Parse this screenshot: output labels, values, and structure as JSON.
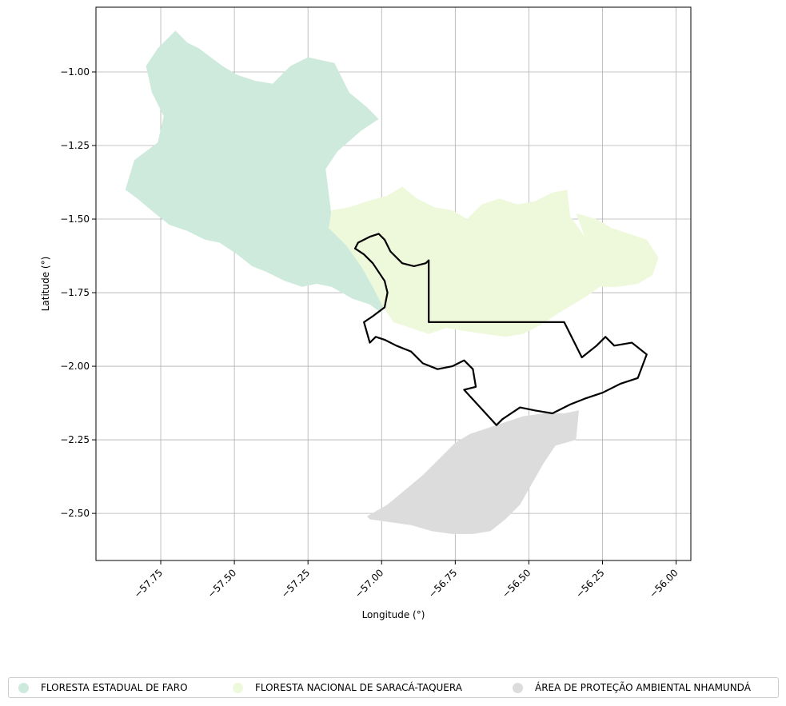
{
  "map": {
    "xlabel": "Longitude (°)",
    "ylabel": "Latitude (°)",
    "xticks": [
      -57.75,
      -57.5,
      -57.25,
      -57.0,
      -56.75,
      -56.5,
      -56.25,
      -56.0
    ],
    "xtick_labels": [
      "−57.75",
      "−57.50",
      "−57.25",
      "−57.00",
      "−56.75",
      "−56.50",
      "−56.25",
      "−56.00"
    ],
    "yticks": [
      -1.0,
      -1.25,
      -1.5,
      -1.75,
      -2.0,
      -2.25,
      -2.5
    ],
    "ytick_labels": [
      "−1.00",
      "−1.25",
      "−1.50",
      "−1.75",
      "−2.00",
      "−2.25",
      "−2.50"
    ],
    "xlim": [
      -57.97,
      -55.95
    ],
    "ylim": [
      -2.66,
      -0.78
    ],
    "grid": true,
    "legend_position": "bottom-center"
  },
  "legend": {
    "items": [
      {
        "label": "FLORESTA ESTADUAL DE FARO",
        "color": "#cdeadc"
      },
      {
        "label": "FLORESTA NACIONAL DE SARACÁ-TAQUERA",
        "color": "#eef8da"
      },
      {
        "label": "ÁREA DE PROTEÇÃO AMBIENTAL NHAMUNDÁ",
        "color": "#dcdcdc"
      }
    ]
  },
  "regions": [
    {
      "name": "FLORESTA ESTADUAL DE FARO",
      "color": "#cdeadc",
      "coords": [
        [
          -57.7,
          -0.86
        ],
        [
          -57.66,
          -0.9
        ],
        [
          -57.62,
          -0.92
        ],
        [
          -57.58,
          -0.95
        ],
        [
          -57.54,
          -0.98
        ],
        [
          -57.49,
          -1.01
        ],
        [
          -57.43,
          -1.03
        ],
        [
          -57.37,
          -1.04
        ],
        [
          -57.31,
          -0.98
        ],
        [
          -57.25,
          -0.95
        ],
        [
          -57.16,
          -0.97
        ],
        [
          -57.11,
          -1.07
        ],
        [
          -57.05,
          -1.12
        ],
        [
          -57.01,
          -1.16
        ],
        [
          -57.07,
          -1.2
        ],
        [
          -57.15,
          -1.27
        ],
        [
          -57.19,
          -1.33
        ],
        [
          -57.18,
          -1.41
        ],
        [
          -57.17,
          -1.49
        ],
        [
          -57.18,
          -1.53
        ],
        [
          -57.13,
          -1.55
        ],
        [
          -57.1,
          -1.6
        ],
        [
          -57.06,
          -1.63
        ],
        [
          -57.02,
          -1.66
        ],
        [
          -56.99,
          -1.71
        ],
        [
          -56.99,
          -1.77
        ],
        [
          -57.0,
          -1.82
        ],
        [
          -57.04,
          -1.79
        ],
        [
          -57.1,
          -1.77
        ],
        [
          -57.17,
          -1.73
        ],
        [
          -57.22,
          -1.72
        ],
        [
          -57.27,
          -1.73
        ],
        [
          -57.33,
          -1.71
        ],
        [
          -57.39,
          -1.68
        ],
        [
          -57.44,
          -1.66
        ],
        [
          -57.49,
          -1.62
        ],
        [
          -57.55,
          -1.58
        ],
        [
          -57.6,
          -1.57
        ],
        [
          -57.66,
          -1.54
        ],
        [
          -57.72,
          -1.52
        ],
        [
          -57.77,
          -1.48
        ],
        [
          -57.83,
          -1.43
        ],
        [
          -57.87,
          -1.4
        ],
        [
          -57.84,
          -1.3
        ],
        [
          -57.76,
          -1.24
        ],
        [
          -57.74,
          -1.15
        ],
        [
          -57.78,
          -1.07
        ],
        [
          -57.8,
          -0.98
        ],
        [
          -57.76,
          -0.92
        ]
      ]
    },
    {
      "name": "FLORESTA NACIONAL DE SARACÁ-TAQUERA",
      "color": "#eef8da",
      "coords": [
        [
          -57.18,
          -1.53
        ],
        [
          -57.17,
          -1.47
        ],
        [
          -57.11,
          -1.46
        ],
        [
          -57.05,
          -1.44
        ],
        [
          -56.98,
          -1.42
        ],
        [
          -56.93,
          -1.39
        ],
        [
          -56.88,
          -1.43
        ],
        [
          -56.82,
          -1.46
        ],
        [
          -56.76,
          -1.47
        ],
        [
          -56.71,
          -1.5
        ],
        [
          -56.66,
          -1.45
        ],
        [
          -56.6,
          -1.43
        ],
        [
          -56.54,
          -1.45
        ],
        [
          -56.48,
          -1.44
        ],
        [
          -56.42,
          -1.41
        ],
        [
          -56.37,
          -1.4
        ],
        [
          -56.36,
          -1.49
        ],
        [
          -56.31,
          -1.56
        ],
        [
          -56.34,
          -1.48
        ],
        [
          -56.27,
          -1.5
        ],
        [
          -56.22,
          -1.53
        ],
        [
          -56.16,
          -1.55
        ],
        [
          -56.1,
          -1.57
        ],
        [
          -56.06,
          -1.63
        ],
        [
          -56.08,
          -1.69
        ],
        [
          -56.13,
          -1.72
        ],
        [
          -56.2,
          -1.73
        ],
        [
          -56.26,
          -1.73
        ],
        [
          -56.3,
          -1.76
        ],
        [
          -56.35,
          -1.79
        ],
        [
          -56.4,
          -1.82
        ],
        [
          -56.46,
          -1.86
        ],
        [
          -56.52,
          -1.89
        ],
        [
          -56.58,
          -1.9
        ],
        [
          -56.65,
          -1.89
        ],
        [
          -56.72,
          -1.88
        ],
        [
          -56.78,
          -1.87
        ],
        [
          -56.84,
          -1.89
        ],
        [
          -56.9,
          -1.87
        ],
        [
          -56.96,
          -1.85
        ],
        [
          -57.0,
          -1.79
        ],
        [
          -57.03,
          -1.73
        ],
        [
          -57.07,
          -1.66
        ],
        [
          -57.12,
          -1.59
        ]
      ]
    },
    {
      "name": "ÁREA DE PROTEÇÃO AMBIENTAL NHAMUNDÁ",
      "color": "#dcdcdc",
      "coords": [
        [
          -57.05,
          -2.51
        ],
        [
          -56.98,
          -2.47
        ],
        [
          -56.92,
          -2.42
        ],
        [
          -56.86,
          -2.37
        ],
        [
          -56.8,
          -2.31
        ],
        [
          -56.75,
          -2.26
        ],
        [
          -56.7,
          -2.23
        ],
        [
          -56.64,
          -2.21
        ],
        [
          -56.58,
          -2.19
        ],
        [
          -56.52,
          -2.17
        ],
        [
          -56.45,
          -2.16
        ],
        [
          -56.38,
          -2.16
        ],
        [
          -56.33,
          -2.15
        ],
        [
          -56.34,
          -2.25
        ],
        [
          -56.41,
          -2.27
        ],
        [
          -56.45,
          -2.33
        ],
        [
          -56.49,
          -2.4
        ],
        [
          -56.53,
          -2.47
        ],
        [
          -56.58,
          -2.52
        ],
        [
          -56.63,
          -2.56
        ],
        [
          -56.69,
          -2.57
        ],
        [
          -56.76,
          -2.57
        ],
        [
          -56.83,
          -2.56
        ],
        [
          -56.9,
          -2.54
        ],
        [
          -56.97,
          -2.53
        ],
        [
          -57.04,
          -2.52
        ]
      ]
    }
  ],
  "boundary": {
    "color": "#000000",
    "coords": [
      [
        -57.08,
        -1.58
      ],
      [
        -57.04,
        -1.56
      ],
      [
        -57.01,
        -1.55
      ],
      [
        -56.99,
        -1.57
      ],
      [
        -56.97,
        -1.61
      ],
      [
        -56.93,
        -1.65
      ],
      [
        -56.89,
        -1.66
      ],
      [
        -56.85,
        -1.65
      ],
      [
        -56.84,
        -1.64
      ],
      [
        -56.84,
        -1.85
      ],
      [
        -56.38,
        -1.85
      ],
      [
        -56.32,
        -1.97
      ],
      [
        -56.27,
        -1.93
      ],
      [
        -56.24,
        -1.9
      ],
      [
        -56.21,
        -1.93
      ],
      [
        -56.15,
        -1.92
      ],
      [
        -56.1,
        -1.96
      ],
      [
        -56.13,
        -2.04
      ],
      [
        -56.19,
        -2.06
      ],
      [
        -56.25,
        -2.09
      ],
      [
        -56.31,
        -2.11
      ],
      [
        -56.36,
        -2.13
      ],
      [
        -56.42,
        -2.16
      ],
      [
        -56.48,
        -2.15
      ],
      [
        -56.53,
        -2.14
      ],
      [
        -56.59,
        -2.18
      ],
      [
        -56.61,
        -2.2
      ],
      [
        -56.72,
        -2.08
      ],
      [
        -56.68,
        -2.07
      ],
      [
        -56.69,
        -2.01
      ],
      [
        -56.72,
        -1.98
      ],
      [
        -56.76,
        -2.0
      ],
      [
        -56.81,
        -2.01
      ],
      [
        -56.86,
        -1.99
      ],
      [
        -56.9,
        -1.95
      ],
      [
        -56.95,
        -1.93
      ],
      [
        -56.99,
        -1.91
      ],
      [
        -57.02,
        -1.9
      ],
      [
        -57.04,
        -1.92
      ],
      [
        -57.06,
        -1.85
      ],
      [
        -57.03,
        -1.83
      ],
      [
        -56.99,
        -1.8
      ],
      [
        -56.98,
        -1.75
      ],
      [
        -56.99,
        -1.71
      ],
      [
        -57.03,
        -1.65
      ],
      [
        -57.06,
        -1.62
      ],
      [
        -57.09,
        -1.6
      ]
    ]
  }
}
